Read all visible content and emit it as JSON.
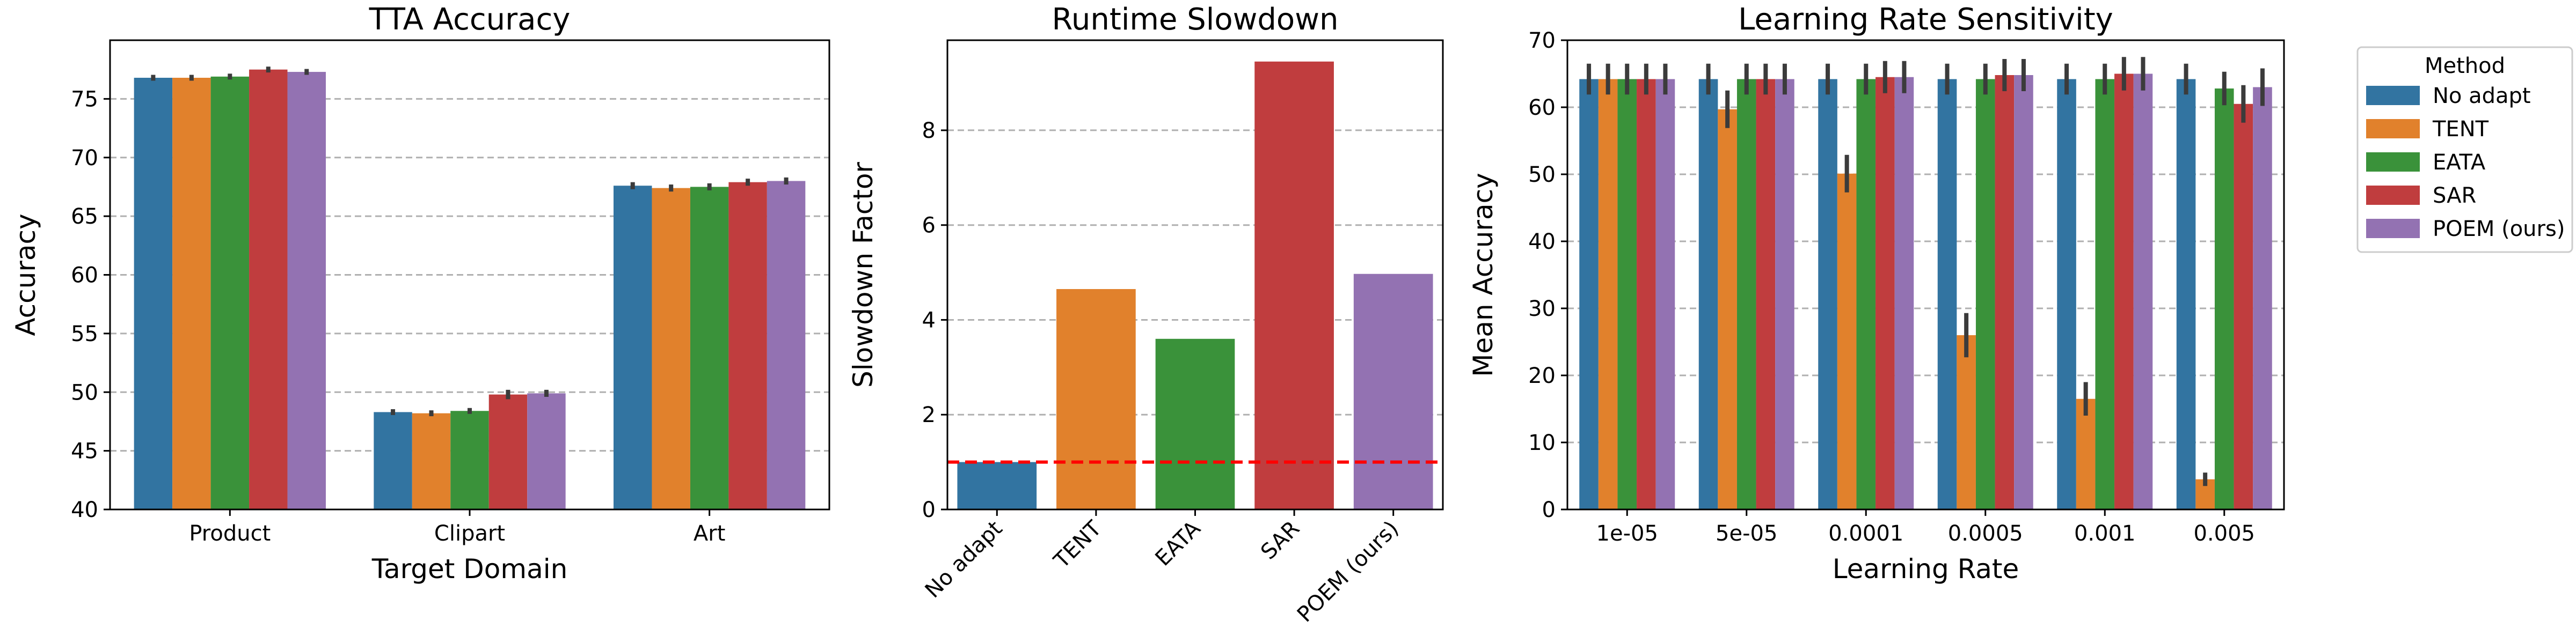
{
  "methods": [
    {
      "name": "No adapt",
      "color": "#3274a1"
    },
    {
      "name": "TENT",
      "color": "#e1812c"
    },
    {
      "name": "EATA",
      "color": "#3a923a"
    },
    {
      "name": "SAR",
      "color": "#c03d3e"
    },
    {
      "name": "POEM (ours)",
      "color": "#9372b2"
    }
  ],
  "legend": {
    "title": "Method",
    "placement": "outside-right"
  },
  "chart_data": [
    {
      "type": "bar",
      "title": "TTA Accuracy",
      "xlabel": "Target Domain",
      "ylabel": "Accuracy",
      "categories": [
        "Product",
        "Clipart",
        "Art"
      ],
      "ylim": [
        40,
        80
      ],
      "yticks": [
        40,
        45,
        50,
        55,
        60,
        65,
        70,
        75
      ],
      "grid": "y-dashed",
      "series": [
        {
          "name": "No adapt",
          "values": [
            76.8,
            48.3,
            67.6
          ],
          "err": [
            0.25,
            0.25,
            0.3
          ]
        },
        {
          "name": "TENT",
          "values": [
            76.8,
            48.2,
            67.4
          ],
          "err": [
            0.25,
            0.25,
            0.3
          ]
        },
        {
          "name": "EATA",
          "values": [
            76.9,
            48.4,
            67.5
          ],
          "err": [
            0.25,
            0.25,
            0.3
          ]
        },
        {
          "name": "SAR",
          "values": [
            77.5,
            49.8,
            67.9
          ],
          "err": [
            0.25,
            0.4,
            0.3
          ]
        },
        {
          "name": "POEM (ours)",
          "values": [
            77.3,
            49.9,
            68.0
          ],
          "err": [
            0.25,
            0.3,
            0.3
          ]
        }
      ]
    },
    {
      "type": "bar",
      "title": "Runtime Slowdown",
      "xlabel": "",
      "ylabel": "Slowdown Factor",
      "categories": [
        "No adapt",
        "TENT",
        "EATA",
        "SAR",
        "POEM (ours)"
      ],
      "values": [
        1.0,
        4.65,
        3.6,
        9.45,
        4.97
      ],
      "ylim": [
        0,
        9.9
      ],
      "yticks": [
        0,
        2,
        4,
        6,
        8
      ],
      "reference_line": {
        "y": 1.0,
        "style": "dashed",
        "color": "#ff0000"
      },
      "grid": "y-dashed",
      "xtick_rotation": 45
    },
    {
      "type": "bar",
      "title": "Learning Rate Sensitivity",
      "xlabel": "Learning Rate",
      "ylabel": "Mean Accuracy",
      "categories": [
        "1e-05",
        "5e-05",
        "0.0001",
        "0.0005",
        "0.001",
        "0.005"
      ],
      "ylim": [
        0,
        70
      ],
      "yticks": [
        0,
        10,
        20,
        30,
        40,
        50,
        60,
        70
      ],
      "grid": "y-dashed",
      "series": [
        {
          "name": "No adapt",
          "values": [
            64.2,
            64.2,
            64.2,
            64.2,
            64.2,
            64.2
          ],
          "err": [
            2.3,
            2.3,
            2.3,
            2.3,
            2.3,
            2.3
          ]
        },
        {
          "name": "TENT",
          "values": [
            64.2,
            59.7,
            50.1,
            26.0,
            16.5,
            4.5
          ],
          "err": [
            2.3,
            2.8,
            2.8,
            3.3,
            2.5,
            1.0
          ]
        },
        {
          "name": "EATA",
          "values": [
            64.2,
            64.2,
            64.2,
            64.2,
            64.2,
            62.8
          ],
          "err": [
            2.3,
            2.3,
            2.3,
            2.3,
            2.3,
            2.5
          ]
        },
        {
          "name": "SAR",
          "values": [
            64.2,
            64.2,
            64.5,
            64.8,
            65.0,
            60.5
          ],
          "err": [
            2.3,
            2.3,
            2.4,
            2.4,
            2.5,
            2.8
          ]
        },
        {
          "name": "POEM (ours)",
          "values": [
            64.2,
            64.2,
            64.5,
            64.8,
            65.0,
            63.0
          ],
          "err": [
            2.3,
            2.3,
            2.4,
            2.4,
            2.5,
            2.8
          ]
        }
      ]
    }
  ]
}
